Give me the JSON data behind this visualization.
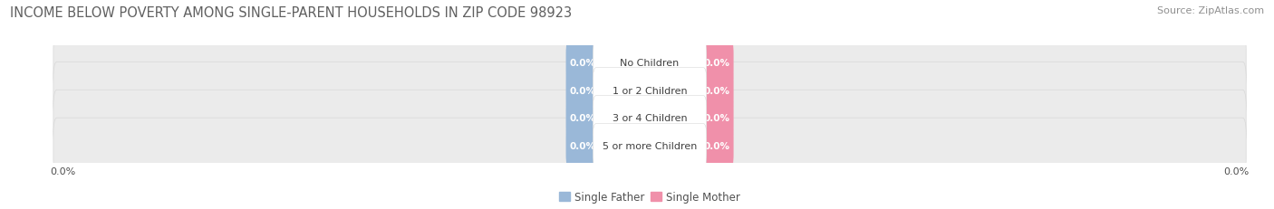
{
  "title": "INCOME BELOW POVERTY AMONG SINGLE-PARENT HOUSEHOLDS IN ZIP CODE 98923",
  "source": "Source: ZipAtlas.com",
  "categories": [
    "No Children",
    "1 or 2 Children",
    "3 or 4 Children",
    "5 or more Children"
  ],
  "father_values": [
    0.0,
    0.0,
    0.0,
    0.0
  ],
  "mother_values": [
    0.0,
    0.0,
    0.0,
    0.0
  ],
  "father_color": "#9ab8d8",
  "mother_color": "#f090aa",
  "father_label": "Single Father",
  "mother_label": "Single Mother",
  "bg_color": "#ffffff",
  "row_bg_color": "#ebebeb",
  "row_border_color": "#d8d8d8",
  "title_color": "#606060",
  "source_color": "#909090",
  "label_color": "#505050",
  "value_color": "#ffffff",
  "center_label_color": "#404040",
  "title_fontsize": 10.5,
  "source_fontsize": 8,
  "category_fontsize": 8,
  "value_fontsize": 7.5,
  "legend_fontsize": 8.5,
  "axis_label_fontsize": 8
}
